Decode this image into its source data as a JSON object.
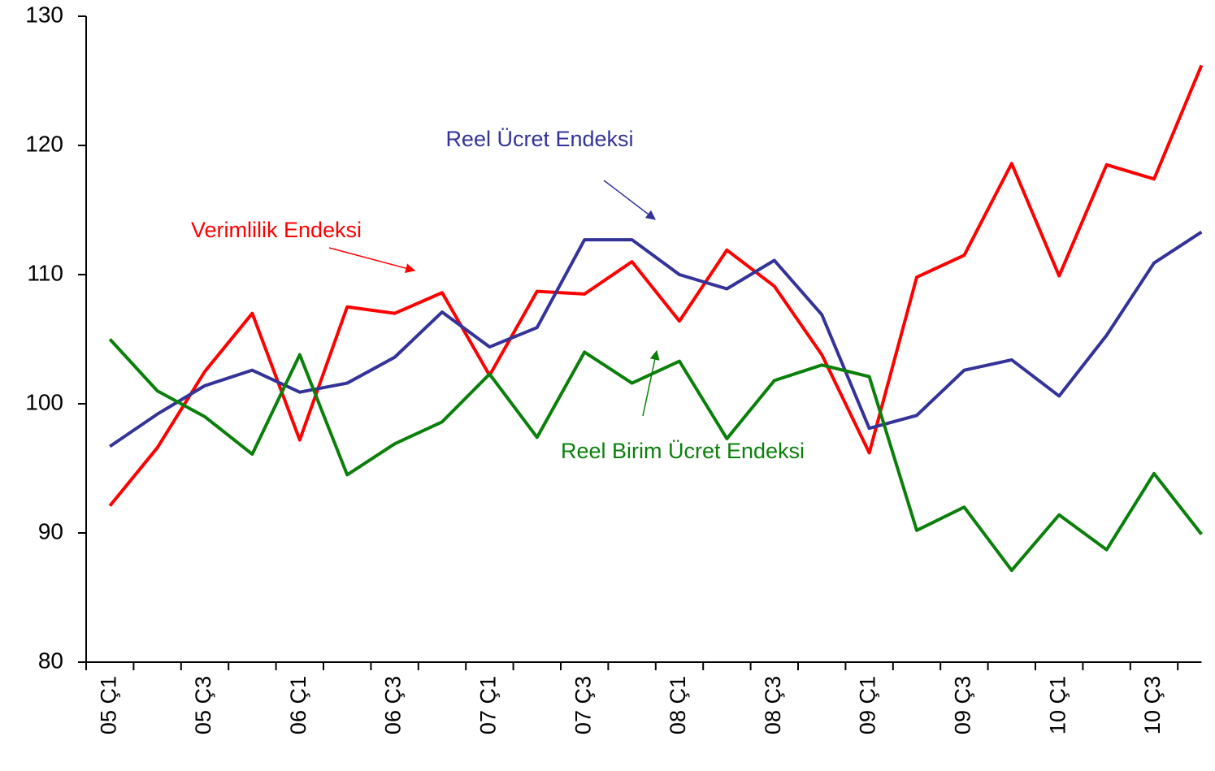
{
  "chart_data": {
    "type": "line",
    "categories": [
      "05 Ç1",
      null,
      "05 Ç3",
      null,
      "06 Ç1",
      null,
      "06 Ç3",
      null,
      "07 Ç1",
      null,
      "07 Ç3",
      null,
      "08 Ç1",
      null,
      "08 Ç3",
      null,
      "09 Ç1",
      null,
      "09 Ç3",
      null,
      "10 Ç1",
      null,
      "10 Ç3",
      null
    ],
    "series": [
      {
        "name": "Verimlilik Endeksi",
        "color": "#ff0000",
        "values": [
          92.1,
          96.6,
          102.5,
          107.0,
          97.2,
          107.5,
          107.0,
          108.6,
          102.2,
          108.7,
          108.5,
          111.0,
          106.4,
          111.9,
          109.1,
          103.8,
          96.2,
          109.8,
          111.5,
          118.6,
          109.9,
          118.5,
          117.4,
          126.2
        ]
      },
      {
        "name": "Reel Ücret Endeksi",
        "color": "#333399",
        "values": [
          96.7,
          99.2,
          101.4,
          102.6,
          100.9,
          101.6,
          103.6,
          107.1,
          104.4,
          105.9,
          112.7,
          112.7,
          110.0,
          108.9,
          111.1,
          106.9,
          98.1,
          99.1,
          102.6,
          103.4,
          100.6,
          105.3,
          110.9,
          113.3
        ]
      },
      {
        "name": "Reel Birim Ücret Endeksi",
        "color": "#0a800a",
        "values": [
          105.0,
          101.0,
          99.0,
          96.1,
          103.8,
          94.5,
          96.9,
          98.6,
          102.3,
          97.4,
          104.0,
          101.6,
          103.3,
          97.3,
          101.8,
          103.0,
          102.1,
          90.2,
          92.0,
          87.1,
          91.4,
          88.7,
          94.6,
          89.9
        ]
      }
    ],
    "ylim": [
      80,
      130
    ],
    "yticks": [
      80,
      90,
      100,
      110,
      120,
      130
    ]
  }
}
